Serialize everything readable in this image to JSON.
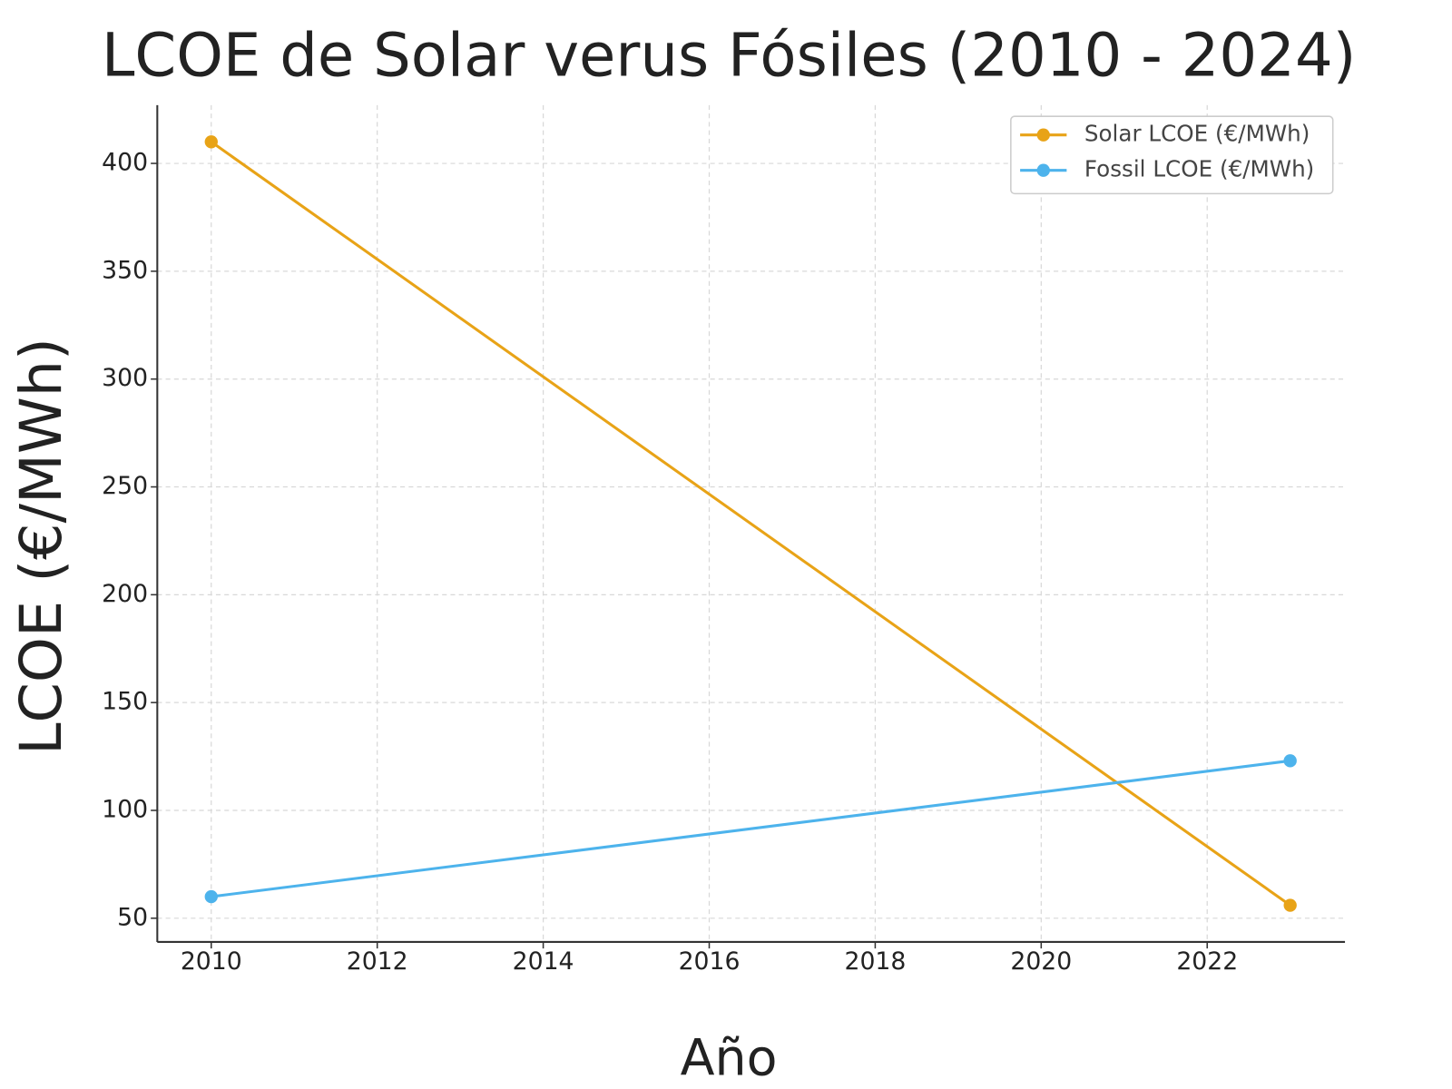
{
  "chart_data": {
    "type": "line",
    "title": "LCOE de Solar verus Fósiles (2010 - 2024)",
    "x_label": "Año",
    "y_label": "LCOE (€/MWh)",
    "x": [
      2010,
      2023
    ],
    "series": [
      {
        "name": "Solar LCOE (€/MWh)",
        "color": "#e8a317",
        "values": [
          410,
          56
        ]
      },
      {
        "name": "Fossil LCOE (€/MWh)",
        "color": "#4db3ec",
        "values": [
          60,
          123
        ]
      }
    ],
    "xlim": [
      2009.35,
      2023.66
    ],
    "xticks": [
      2010,
      2012,
      2014,
      2016,
      2018,
      2020,
      2022
    ],
    "ylim": [
      39,
      427
    ],
    "yticks": [
      50,
      100,
      150,
      200,
      250,
      300,
      350,
      400
    ],
    "grid": true,
    "legend": "upper right"
  }
}
